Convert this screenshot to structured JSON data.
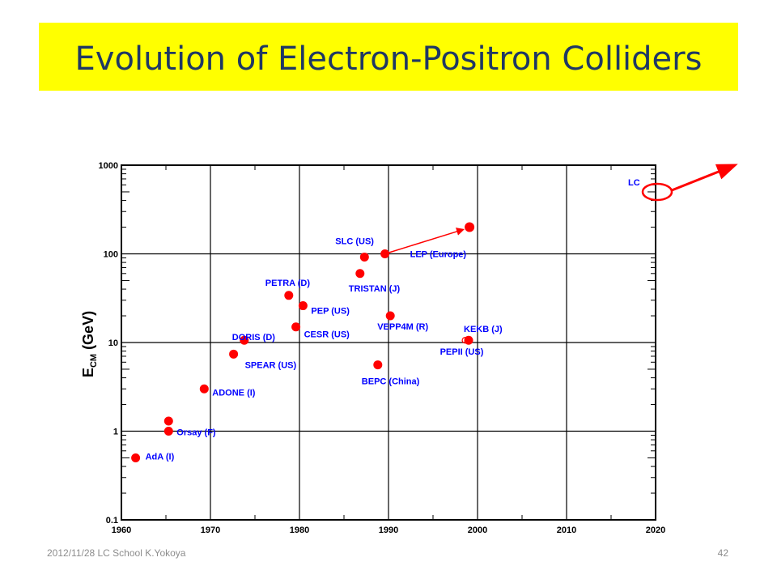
{
  "slide": {
    "title": "Evolution of Electron-Positron Colliders",
    "footer": "2012/11/28 LC School K.Yokoya",
    "page_number": "42"
  },
  "chart_data": {
    "type": "scatter",
    "title": "",
    "xlabel": "",
    "ylabel": {
      "main": "E",
      "sub": "CM",
      "rest": " (GeV)"
    },
    "x_scale": "linear",
    "y_scale": "log",
    "xlim": [
      1960,
      2020
    ],
    "ylim": [
      0.1,
      1000
    ],
    "x_ticks": [
      1960,
      1970,
      1980,
      1990,
      2000,
      2010,
      2020
    ],
    "y_ticks": [
      0.1,
      1,
      10,
      100,
      1000
    ],
    "y_tick_labels": [
      "0.1",
      "1",
      "10",
      "100",
      "1000"
    ],
    "grid": true,
    "marker_color": "#ff0000",
    "label_color": "#0000ff",
    "points": [
      {
        "label": "AdA (I)",
        "x": 1961.6,
        "y": 0.5
      },
      {
        "label": "Orsay (F)",
        "x": 1965.3,
        "y": 1.0,
        "extra_y": [
          1.3
        ]
      },
      {
        "label": "ADONE (I)",
        "x": 1969.3,
        "y": 3.0
      },
      {
        "label": "SPEAR (US)",
        "x": 1972.6,
        "y": 7.4
      },
      {
        "label": "DORIS (D)",
        "x": 1973.8,
        "y": 10.6
      },
      {
        "label": "PETRA (D)",
        "x": 1978.8,
        "y": 34
      },
      {
        "label": "PEP (US)",
        "x": 1980.4,
        "y": 26
      },
      {
        "label": "CESR (US)",
        "x": 1979.6,
        "y": 15
      },
      {
        "label": "TRISTAN (J)",
        "x": 1986.8,
        "y": 60
      },
      {
        "label": "SLC (US)",
        "x": 1987.3,
        "y": 92
      },
      {
        "label": "LEP (Europe)",
        "x": 1989.6,
        "y": 100,
        "extra_y": []
      },
      {
        "label": "BEPC (China)",
        "x": 1988.8,
        "y": 5.6
      },
      {
        "label": "VEPP4M (R)",
        "x": 1990.2,
        "y": 20
      },
      {
        "label": "KEKB (J)",
        "x": 1999.0,
        "y": 10.6
      },
      {
        "label": "PEPII (US)",
        "x": 1998.6,
        "y": 10.6
      },
      {
        "label": "LC",
        "x": 2020,
        "y": 500
      }
    ],
    "lep_upgrade": {
      "x": 1999.1,
      "y": 200
    }
  }
}
